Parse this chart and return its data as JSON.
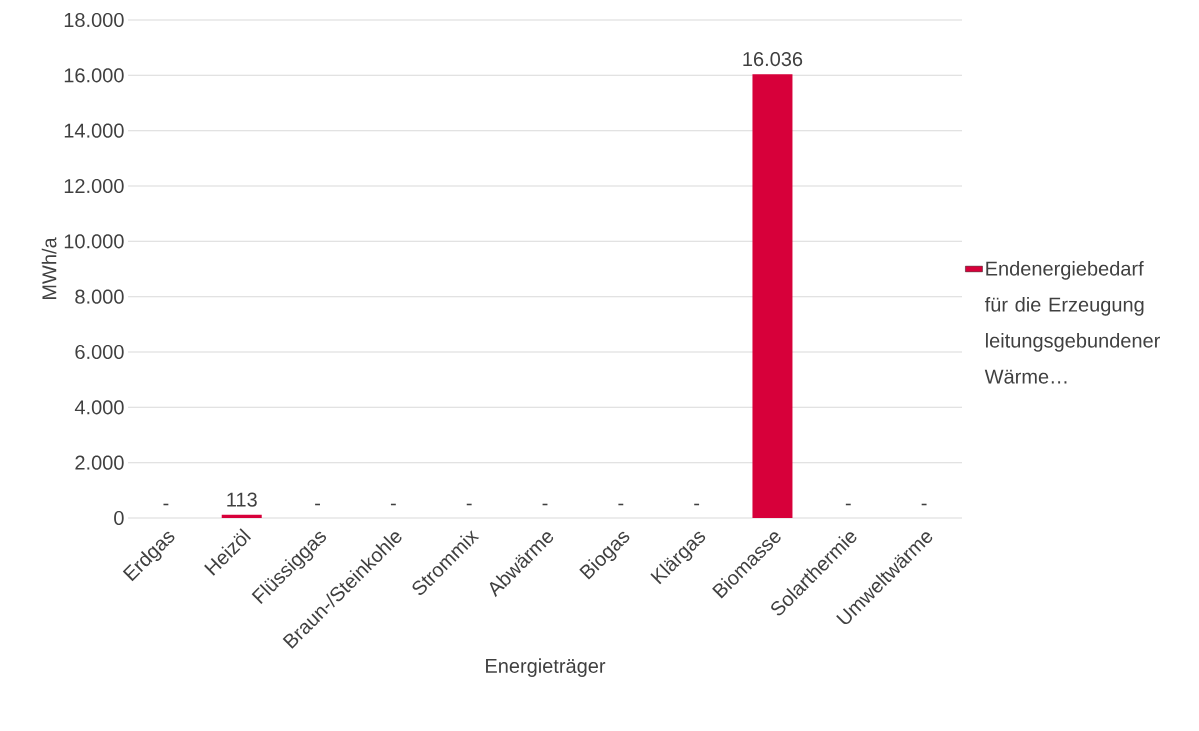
{
  "chart_data": {
    "type": "bar",
    "xlabel": "Energieträger",
    "ylabel": "MWh/a",
    "categories": [
      "Erdgas",
      "Heizöl",
      "Flüssiggas",
      "Braun-/Steinkohle",
      "Strommix",
      "Abwärme",
      "Biogas",
      "Klärgas",
      "Biomasse",
      "Solarthermie",
      "Umweltwärme"
    ],
    "series": [
      {
        "name": "Endenergiebedarf für die Erzeugung leitungsgebundener Wärme…",
        "color": "#d7003a",
        "values": [
          0,
          113,
          0,
          0,
          0,
          0,
          0,
          0,
          16036,
          0,
          0
        ],
        "value_labels": [
          "-",
          "113",
          "-",
          "-",
          "-",
          "-",
          "-",
          "-",
          "16.036",
          "-",
          "-"
        ]
      }
    ],
    "ylim": [
      0,
      18000
    ],
    "yticks": [
      0,
      {
        "value": 2000,
        "label": "2.000"
      },
      {
        "value": 4000,
        "label": "4.000"
      },
      {
        "value": 6000,
        "label": "6.000"
      },
      {
        "value": 8000,
        "label": "8.000"
      },
      {
        "value": 10000,
        "label": "10.000"
      },
      {
        "value": 12000,
        "label": "12.000"
      },
      {
        "value": 14000,
        "label": "14.000"
      },
      {
        "value": 16000,
        "label": "16.000"
      },
      {
        "value": 18000,
        "label": "18.000"
      }
    ],
    "grid": "y",
    "legend": "right"
  }
}
